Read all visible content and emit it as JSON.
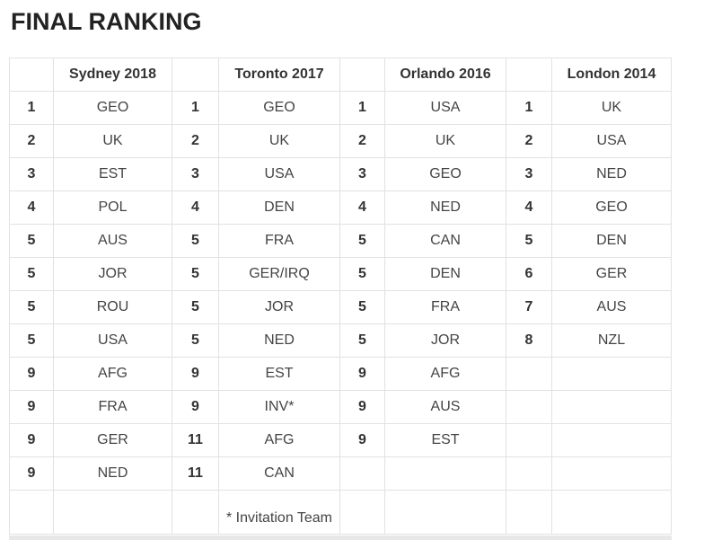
{
  "title": "FINAL RANKING",
  "events": [
    "Sydney 2018",
    "Toronto 2017",
    "Orlando 2016",
    "London 2014"
  ],
  "rows": [
    [
      [
        "1",
        "GEO"
      ],
      [
        "1",
        "GEO"
      ],
      [
        "1",
        "USA"
      ],
      [
        "1",
        "UK"
      ]
    ],
    [
      [
        "2",
        "UK"
      ],
      [
        "2",
        "UK"
      ],
      [
        "2",
        "UK"
      ],
      [
        "2",
        "USA"
      ]
    ],
    [
      [
        "3",
        "EST"
      ],
      [
        "3",
        "USA"
      ],
      [
        "3",
        "GEO"
      ],
      [
        "3",
        "NED"
      ]
    ],
    [
      [
        "4",
        "POL"
      ],
      [
        "4",
        "DEN"
      ],
      [
        "4",
        "NED"
      ],
      [
        "4",
        "GEO"
      ]
    ],
    [
      [
        "5",
        "AUS"
      ],
      [
        "5",
        "FRA"
      ],
      [
        "5",
        "CAN"
      ],
      [
        "5",
        "DEN"
      ]
    ],
    [
      [
        "5",
        "JOR"
      ],
      [
        "5",
        "GER/IRQ"
      ],
      [
        "5",
        "DEN"
      ],
      [
        "6",
        "GER"
      ]
    ],
    [
      [
        "5",
        "ROU"
      ],
      [
        "5",
        "JOR"
      ],
      [
        "5",
        "FRA"
      ],
      [
        "7",
        "AUS"
      ]
    ],
    [
      [
        "5",
        "USA"
      ],
      [
        "5",
        "NED"
      ],
      [
        "5",
        "JOR"
      ],
      [
        "8",
        "NZL"
      ]
    ],
    [
      [
        "9",
        "AFG"
      ],
      [
        "9",
        "EST"
      ],
      [
        "9",
        "AFG"
      ],
      [
        "",
        ""
      ]
    ],
    [
      [
        "9",
        "FRA"
      ],
      [
        "9",
        "INV*"
      ],
      [
        "9",
        "AUS"
      ],
      [
        "",
        ""
      ]
    ],
    [
      [
        "9",
        "GER"
      ],
      [
        "11",
        "AFG"
      ],
      [
        "9",
        "EST"
      ],
      [
        "",
        ""
      ]
    ],
    [
      [
        "9",
        "NED"
      ],
      [
        "11",
        "CAN"
      ],
      [
        "",
        ""
      ],
      [
        "",
        ""
      ]
    ]
  ],
  "footnote": "* Invitation Team"
}
